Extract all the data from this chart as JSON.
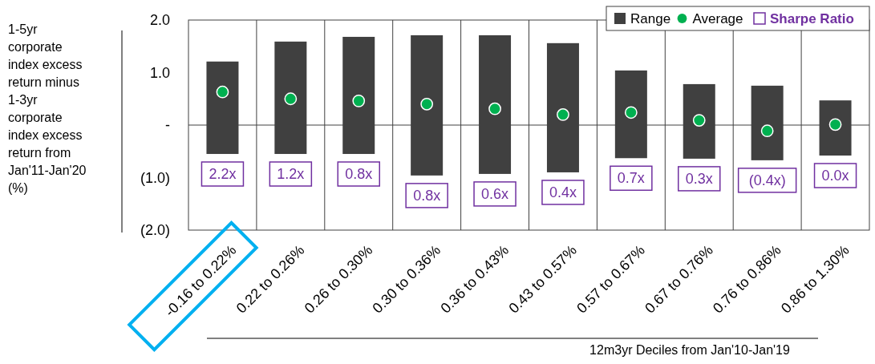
{
  "chart_data": {
    "type": "bar",
    "ylabel": "1-5yr corporate index excess return minus 1-3yr corporate index excess return from Jan'11-Jan'20 (%)",
    "xlabel": "12m3yr Deciles from Jan'10-Jan'19",
    "categories": [
      "-0.16 to 0.22%",
      "0.22 to 0.26%",
      "0.26 to 0.30%",
      "0.30 to 0.36%",
      "0.36 to 0.43%",
      "0.43 to 0.57%",
      "0.57 to 0.67%",
      "0.67 to 0.76%",
      "0.76 to 0.86%",
      "0.86 to 1.30%"
    ],
    "series": [
      {
        "name": "Range",
        "color": "#404040",
        "base": [
          -0.55,
          -0.55,
          -0.55,
          -0.96,
          -0.93,
          -0.9,
          -0.63,
          -0.64,
          -0.67,
          -0.58
        ],
        "values": [
          1.76,
          2.14,
          2.23,
          2.67,
          2.64,
          2.46,
          1.67,
          1.42,
          1.42,
          1.05
        ]
      },
      {
        "name": "Average",
        "type": "scatter",
        "color": "#00b050",
        "marker": "circle",
        "values": [
          0.63,
          0.5,
          0.46,
          0.4,
          0.31,
          0.2,
          0.24,
          0.09,
          -0.11,
          0.01
        ]
      },
      {
        "name": "Sharpe Ratio",
        "type": "other",
        "color": "#7030a0",
        "values": [
          null,
          null,
          null,
          null,
          null,
          null,
          null,
          null,
          null,
          null
        ]
      }
    ],
    "annotations": [
      "2.2x",
      "1.2x",
      "0.8x",
      "0.8x",
      "0.6x",
      "0.4x",
      "0.7x",
      "0.3x",
      "(0.4x)",
      "0.0x"
    ],
    "ylim": [
      -2,
      2
    ],
    "yticks": [
      {
        "value": 2,
        "label": "2.0"
      },
      {
        "value": 1,
        "label": "1.0"
      },
      {
        "value": 0,
        "label": "-"
      },
      {
        "value": -1,
        "label": "(1.0)"
      },
      {
        "value": -2,
        "label": "(2.0)"
      }
    ],
    "ref_lines": [
      {
        "axis": "y",
        "value": 0
      }
    ],
    "grid": "x",
    "legend": "top right"
  }
}
